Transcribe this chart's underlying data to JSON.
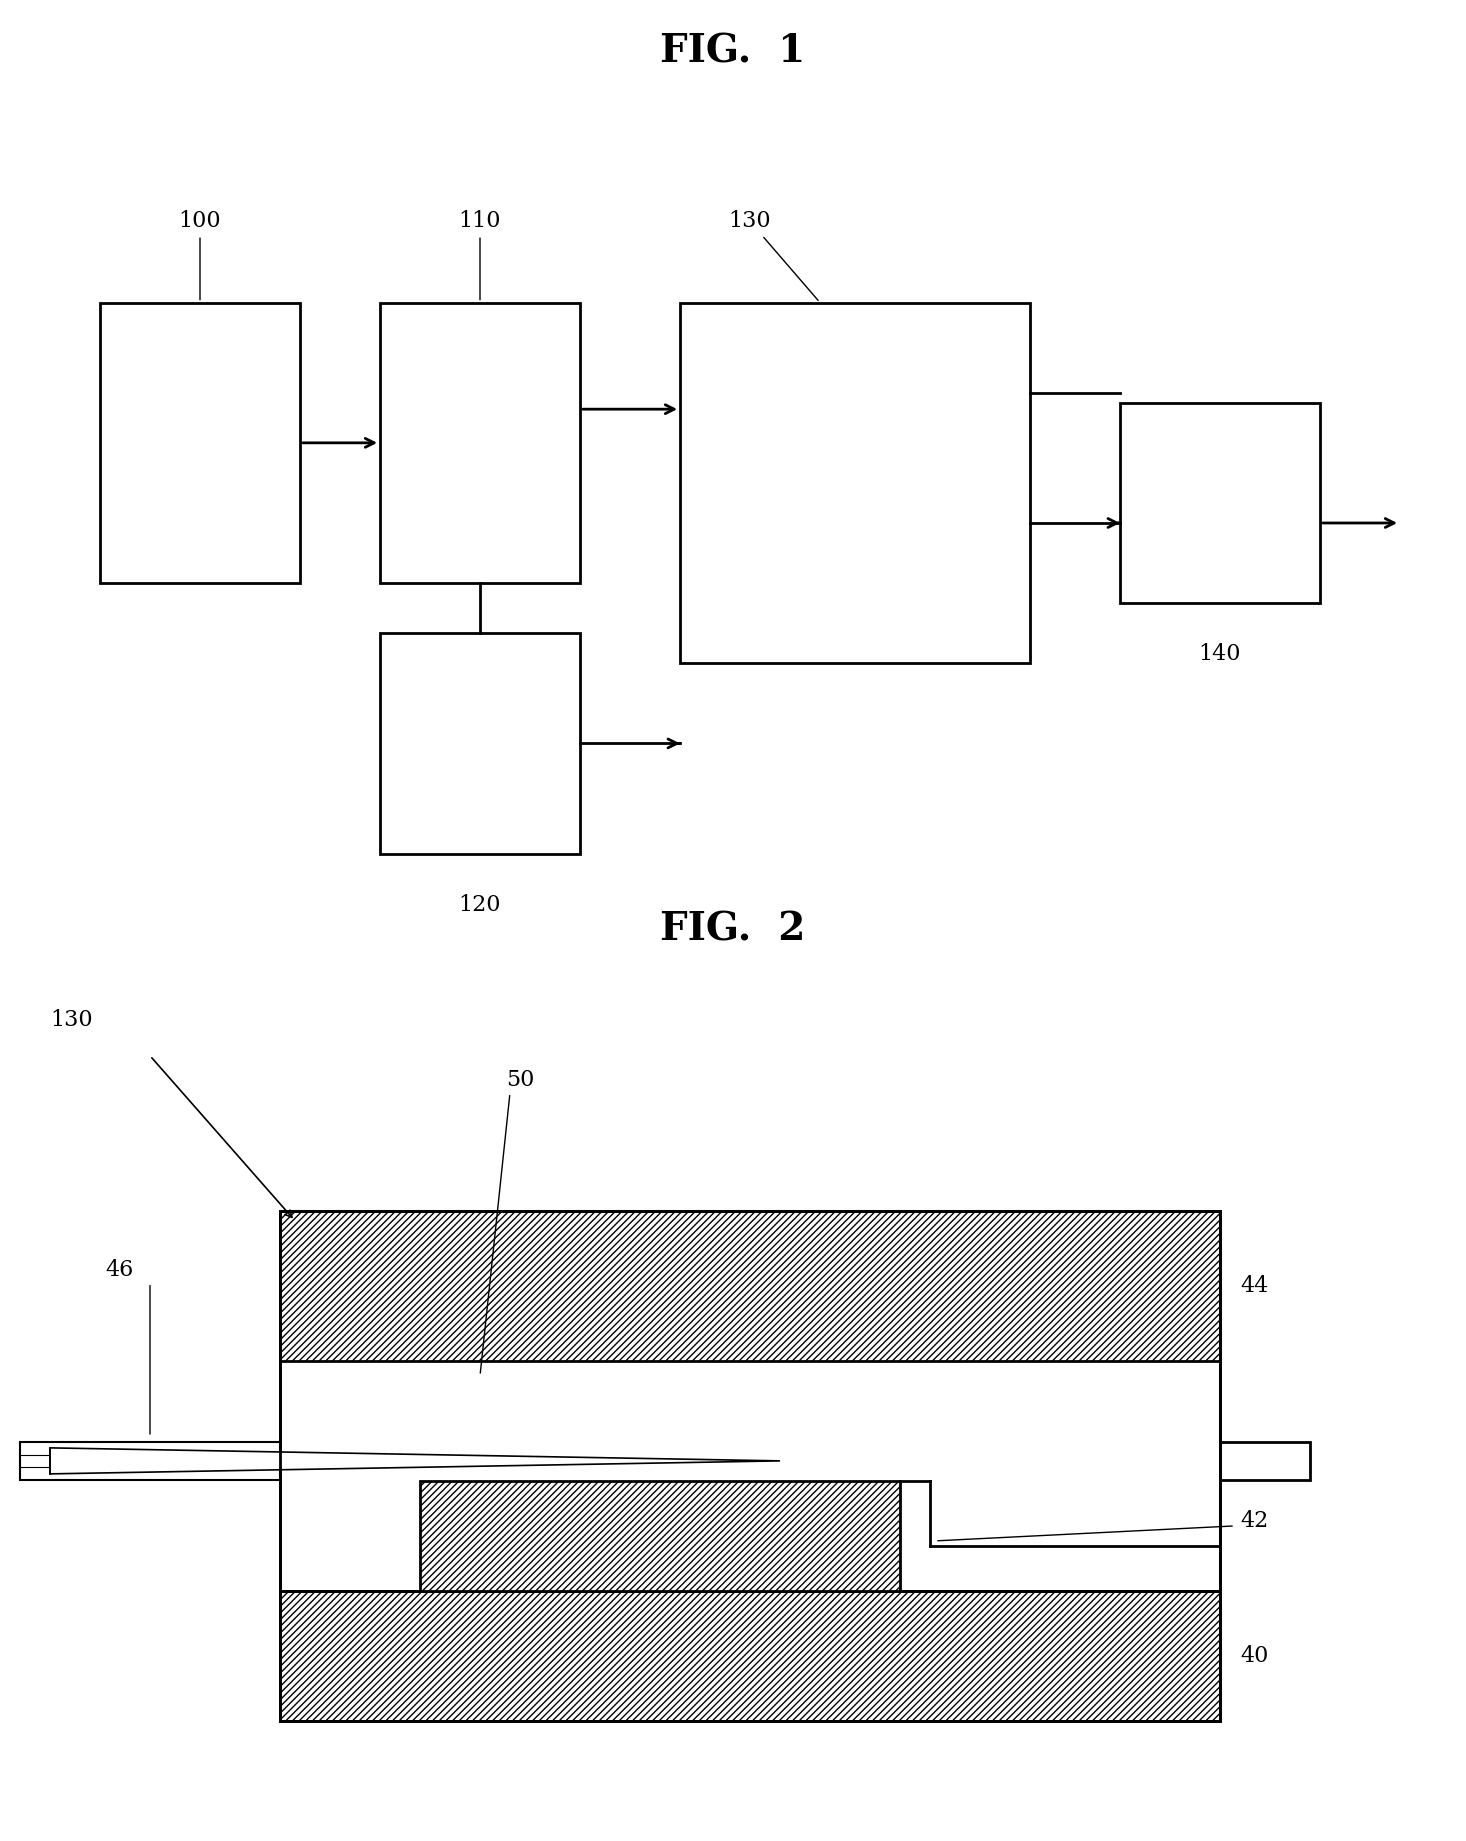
{
  "fig1_title": "FIG.  1",
  "fig2_title": "FIG.  2",
  "background_color": "#ffffff",
  "box_edge_color": "#000000",
  "box_fill_color": "#ffffff",
  "label_color": "#000000",
  "lw": 2.0
}
